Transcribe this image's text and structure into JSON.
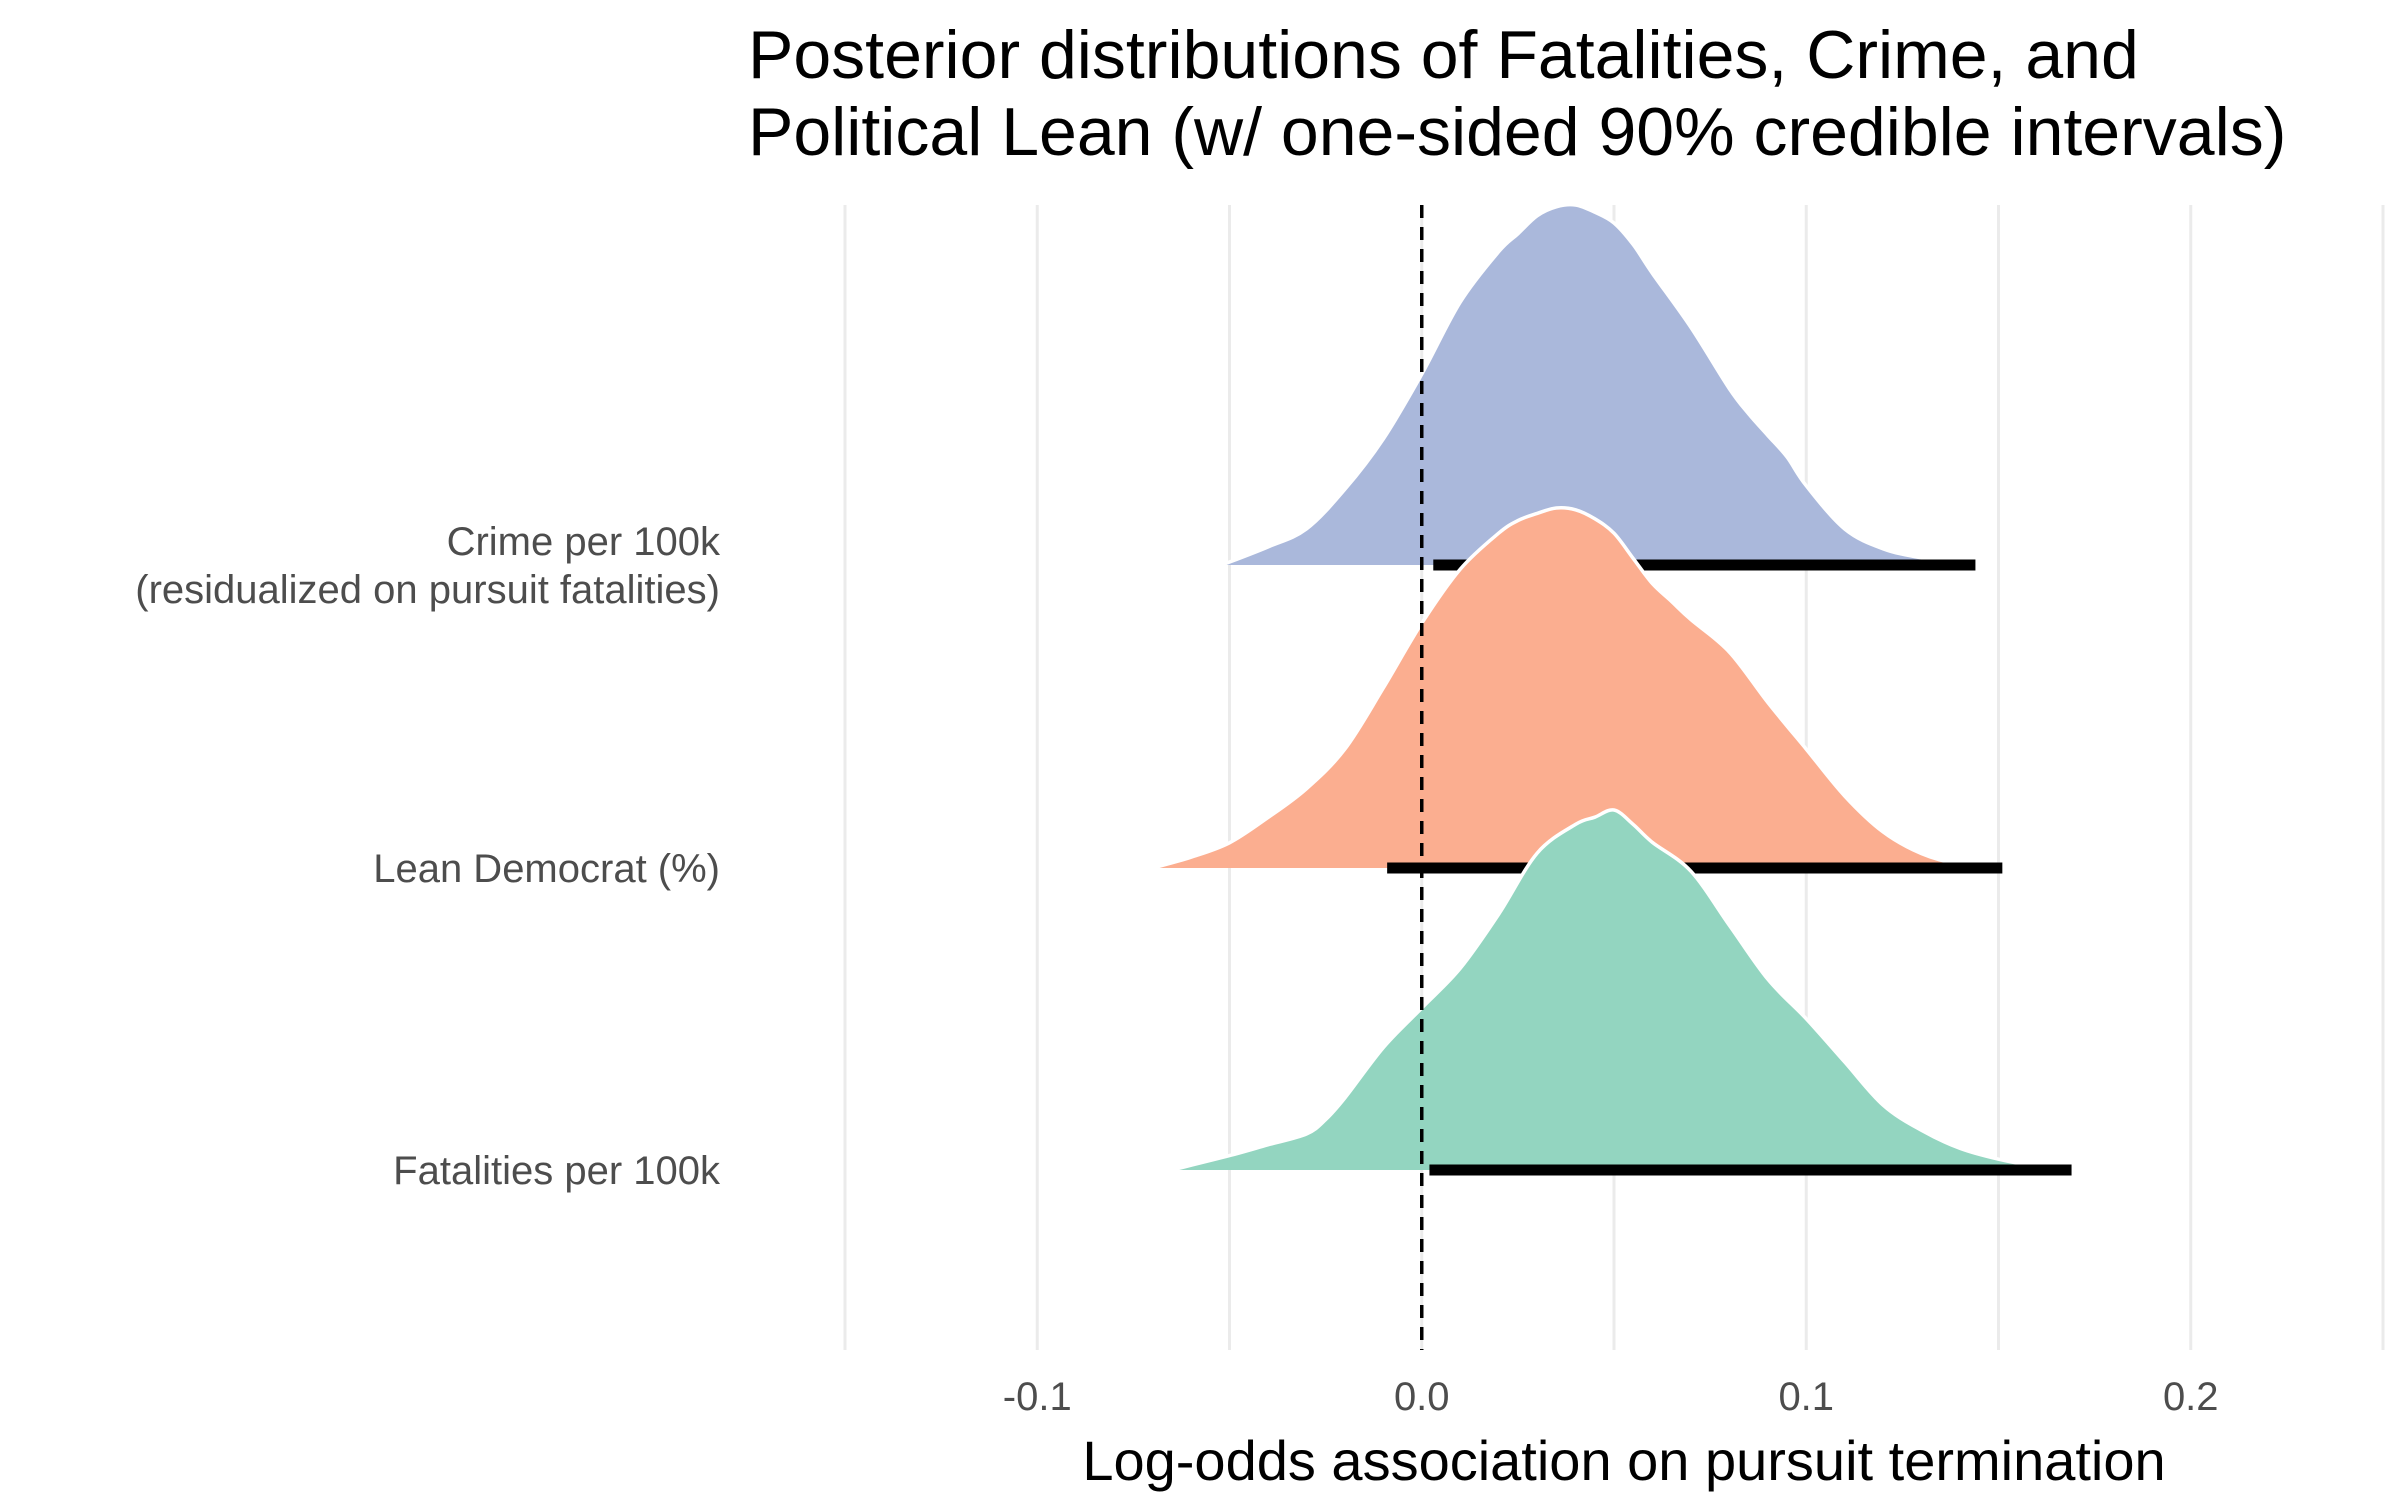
{
  "chart_data": {
    "type": "ridgeline",
    "title_lines": [
      "Posterior distributions of Fatalities, Crime, and",
      "Political Lean (w/ one-sided 90% credible intervals)"
    ],
    "xlabel": "Log-odds association on pursuit termination",
    "ylabel": "",
    "xlim": [
      -0.15,
      0.25
    ],
    "x_ticks": [
      {
        "value": -0.1,
        "label": "-0.1"
      },
      {
        "value": 0.0,
        "label": "0.0"
      },
      {
        "value": 0.1,
        "label": "0.1"
      },
      {
        "value": 0.2,
        "label": "0.2"
      }
    ],
    "grid": true,
    "reference_line": {
      "x": 0.0,
      "style": "dashed"
    },
    "categories": [
      {
        "lines": [
          "Crime per 100k",
          "(residualized on pursuit fatalities)"
        ]
      },
      {
        "lines": [
          "Lean Democrat (%)"
        ]
      },
      {
        "lines": [
          "Fatalities per 100k"
        ]
      }
    ],
    "series": [
      {
        "color": "#aab8db",
        "interval": [
          0.003,
          0.144
        ],
        "density_x": [
          -0.052,
          -0.04,
          -0.03,
          -0.02,
          -0.01,
          0.0,
          0.01,
          0.02,
          0.025,
          0.03,
          0.035,
          0.04,
          0.045,
          0.05,
          0.055,
          0.06,
          0.07,
          0.08,
          0.085,
          0.09,
          0.095,
          0.1,
          0.11,
          0.12,
          0.13,
          0.14,
          0.144
        ],
        "density_y": [
          0.0,
          0.05,
          0.1,
          0.21,
          0.35,
          0.53,
          0.73,
          0.87,
          0.92,
          0.97,
          0.995,
          1.0,
          0.98,
          0.95,
          0.89,
          0.81,
          0.66,
          0.49,
          0.42,
          0.36,
          0.3,
          0.22,
          0.1,
          0.045,
          0.02,
          0.006,
          0.0
        ]
      },
      {
        "color": "#fbae90",
        "interval": [
          -0.009,
          0.151
        ],
        "density_x": [
          -0.07,
          -0.06,
          -0.05,
          -0.04,
          -0.03,
          -0.02,
          -0.01,
          0.0,
          0.01,
          0.02,
          0.025,
          0.03,
          0.035,
          0.04,
          0.045,
          0.05,
          0.055,
          0.06,
          0.065,
          0.07,
          0.08,
          0.09,
          0.1,
          0.11,
          0.12,
          0.13,
          0.14,
          0.151
        ],
        "density_y": [
          0.0,
          0.03,
          0.07,
          0.14,
          0.22,
          0.33,
          0.5,
          0.68,
          0.83,
          0.93,
          0.965,
          0.985,
          1.0,
          0.995,
          0.97,
          0.93,
          0.86,
          0.79,
          0.74,
          0.69,
          0.6,
          0.46,
          0.33,
          0.2,
          0.1,
          0.04,
          0.01,
          0.0
        ]
      },
      {
        "color": "#93d5c0",
        "interval": [
          0.002,
          0.169
        ],
        "density_x": [
          -0.065,
          -0.05,
          -0.04,
          -0.03,
          -0.025,
          -0.02,
          -0.01,
          0.0,
          0.01,
          0.02,
          0.03,
          0.04,
          0.045,
          0.05,
          0.055,
          0.06,
          0.07,
          0.08,
          0.09,
          0.1,
          0.11,
          0.12,
          0.13,
          0.14,
          0.15,
          0.16,
          0.169
        ],
        "density_y": [
          0.0,
          0.04,
          0.07,
          0.1,
          0.14,
          0.2,
          0.34,
          0.45,
          0.56,
          0.71,
          0.88,
          0.96,
          0.98,
          1.0,
          0.96,
          0.91,
          0.83,
          0.68,
          0.53,
          0.42,
          0.3,
          0.18,
          0.11,
          0.06,
          0.03,
          0.01,
          0.0
        ]
      }
    ]
  }
}
